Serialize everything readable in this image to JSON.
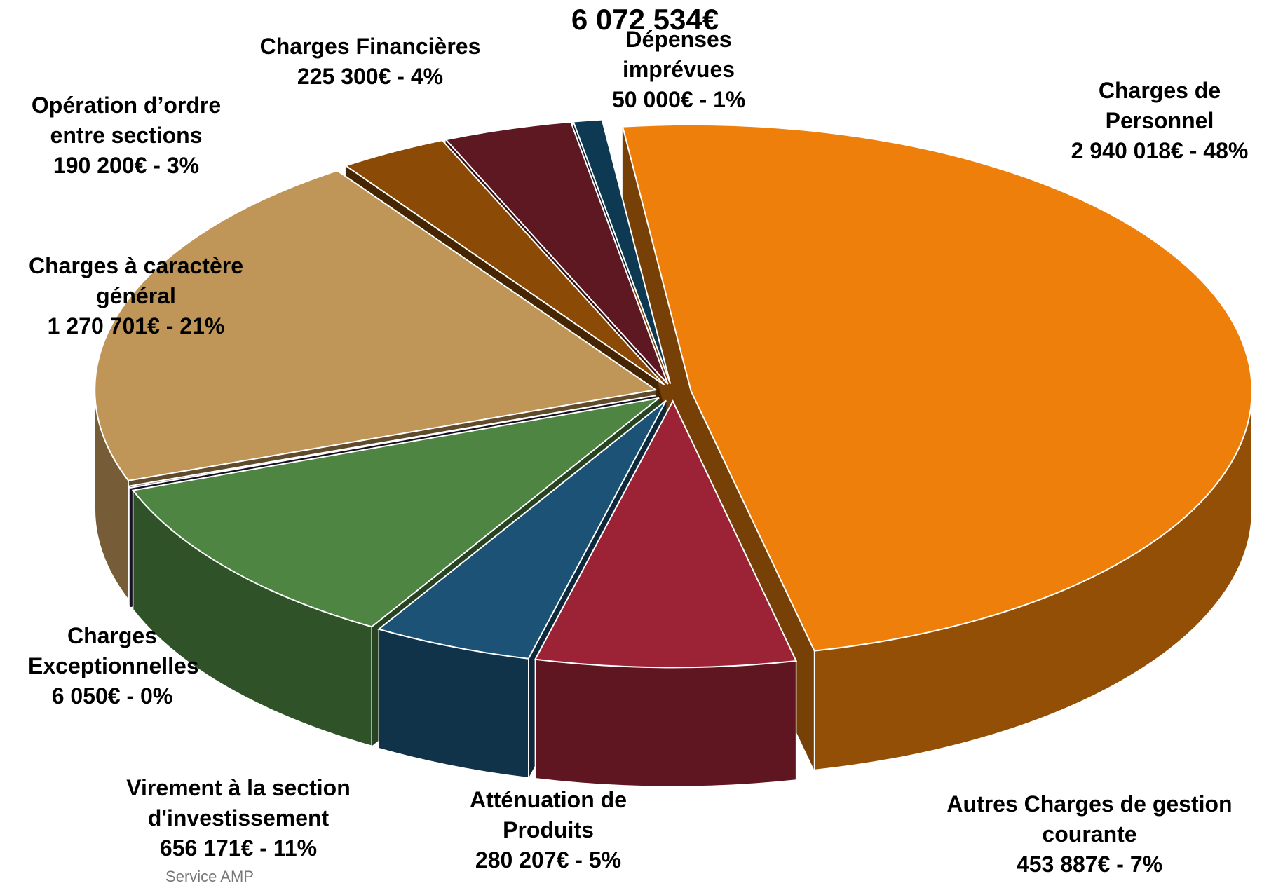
{
  "chart_data": {
    "type": "pie",
    "title": "6 072 534€",
    "categories": [
      "Charges de Personnel",
      "Autres Charges de gestion courante",
      "Atténuation de Produits",
      "Virement à la section d'investissement",
      "Charges Exceptionnelles",
      "Charges à caractère général",
      "Opération d’ordre entre sections",
      "Charges Financières",
      "Dépenses imprévues"
    ],
    "values": [
      2940018,
      453887,
      280207,
      656171,
      6050,
      1270701,
      190200,
      225300,
      50000
    ],
    "value_labels": [
      "2 940 018€ - 48%",
      "453 887€ - 7%",
      "280 207€ - 5%",
      "656 171€ - 11%",
      "6 050€ - 0%",
      "1 270 701€ - 21%",
      "190 200€ - 3%",
      "225 300€ - 4%",
      "50 000€ - 1%"
    ],
    "colors": [
      "#ee7f0b",
      "#9b2335",
      "#1b5276",
      "#4e8542",
      "#2f2440",
      "#bf9558",
      "#8b4a05",
      "#5e1822",
      "#0d3a52"
    ],
    "footnote": "Service AMP"
  }
}
